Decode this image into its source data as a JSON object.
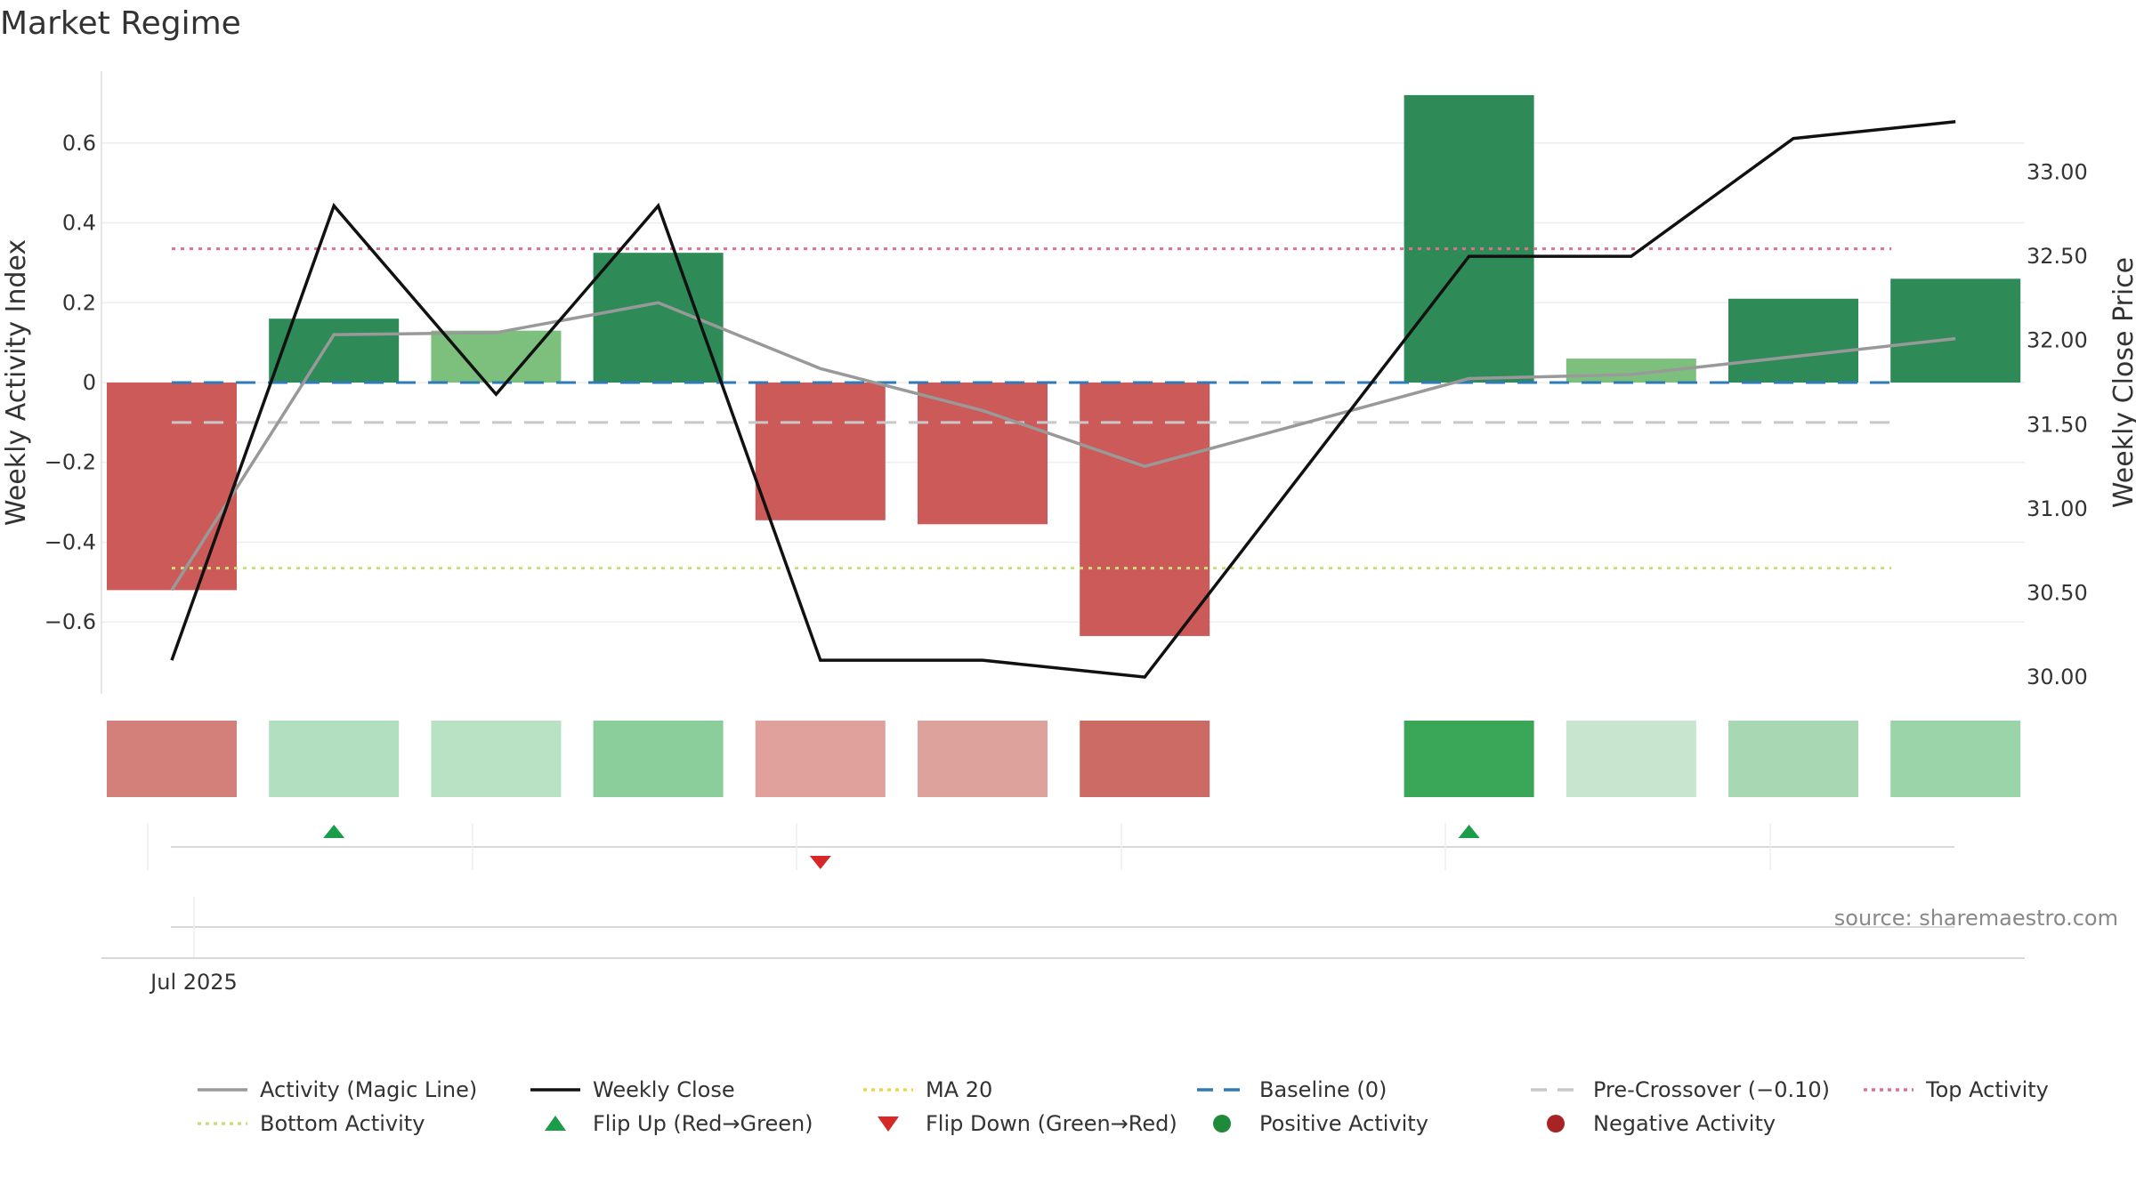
{
  "chart_data": {
    "type": "bar",
    "title": "Market Regime",
    "ylabel": "Weekly Activity Index",
    "y2label": "Weekly Close Price",
    "ylim": [
      -0.78,
      0.78
    ],
    "y2lim": [
      29.9,
      33.6
    ],
    "yticks": [
      0.6,
      0.4,
      0.2,
      0,
      -0.2,
      -0.4,
      -0.6
    ],
    "ytick_labels": [
      "0.6",
      "0.4",
      "0.2",
      "0",
      "−0.2",
      "−0.4",
      "−0.6"
    ],
    "y2ticks": [
      33.0,
      32.5,
      32.0,
      31.5,
      31.0,
      30.5,
      30.0
    ],
    "y2tick_labels": [
      "33.00",
      "32.50",
      "32.00",
      "31.50",
      "31.00",
      "30.50",
      "30.00"
    ],
    "x_label": "Jul 2025",
    "source": "source: sharemaestro.com",
    "series": [
      {
        "name": "Weekly Activity Index",
        "kind": "bar",
        "values": [
          -0.52,
          0.16,
          0.13,
          0.325,
          -0.345,
          -0.355,
          -0.635,
          null,
          0.72,
          0.06,
          0.21,
          0.26
        ],
        "colors": [
          "#cc5a58",
          "#2e8b57",
          "#7dc07d",
          "#2e8b57",
          "#cc5a58",
          "#cc5a58",
          "#cc5a58",
          null,
          "#2e8b57",
          "#7dc07d",
          "#2e8b57",
          "#2e8b57"
        ]
      },
      {
        "name": "Activity (Magic Line)",
        "kind": "line",
        "axis": "left",
        "color": "#999999",
        "values": [
          -0.52,
          0.12,
          0.125,
          0.2,
          0.035,
          -0.07,
          -0.21,
          null,
          0.01,
          0.02,
          0.065,
          0.11
        ]
      },
      {
        "name": "Weekly Close",
        "kind": "line",
        "axis": "right",
        "color": "#111111",
        "values": [
          30.1,
          32.8,
          31.68,
          32.8,
          30.1,
          30.1,
          30.0,
          null,
          32.5,
          32.5,
          33.2,
          33.3
        ]
      }
    ],
    "reference_lines": [
      {
        "name": "Top Activity",
        "value": 0.335,
        "color": "#e07090",
        "style": "dotted"
      },
      {
        "name": "Baseline (0)",
        "value": 0,
        "color": "#2f7ab8",
        "style": "dashed"
      },
      {
        "name": "Pre-Crossover (−0.10)",
        "value": -0.1,
        "color": "#c8c8c8",
        "style": "dashed"
      },
      {
        "name": "Bottom Activity",
        "value": -0.465,
        "color": "#c8e07a",
        "style": "dotted"
      }
    ],
    "regime_strip_colors": [
      "#d4807a",
      "#b2dfbf",
      "#b9e1c3",
      "#8ccd9c",
      "#e0a09c",
      "#dda29c",
      "#cc6b66",
      null,
      "#3aa657",
      "#c8e6cf",
      "#a8d8b3",
      "#9bd4a9"
    ],
    "flip_up_weeks": [
      1,
      8
    ],
    "flip_down_weeks": [
      4
    ],
    "legend": [
      {
        "label": "Activity (Magic Line)",
        "symbol": "line",
        "color": "#999999"
      },
      {
        "label": "Weekly Close",
        "symbol": "line",
        "color": "#111111"
      },
      {
        "label": "MA 20",
        "symbol": "dotted",
        "color": "#e8d84a"
      },
      {
        "label": "Baseline (0)",
        "symbol": "dashed",
        "color": "#2f7ab8"
      },
      {
        "label": "Pre-Crossover (−0.10)",
        "symbol": "dashed",
        "color": "#c8c8c8"
      },
      {
        "label": "Top Activity",
        "symbol": "dotted",
        "color": "#e07090"
      },
      {
        "label": "Bottom Activity",
        "symbol": "dotted",
        "color": "#c8e07a"
      },
      {
        "label": "Flip Up (Red→Green)",
        "symbol": "triangle-up",
        "color": "#1a9c4a"
      },
      {
        "label": "Flip Down (Green→Red)",
        "symbol": "triangle-down",
        "color": "#d62828"
      },
      {
        "label": "Positive Activity",
        "symbol": "circle",
        "color": "#1f8a3a"
      },
      {
        "label": "Negative Activity",
        "symbol": "circle",
        "color": "#a82424"
      }
    ]
  }
}
